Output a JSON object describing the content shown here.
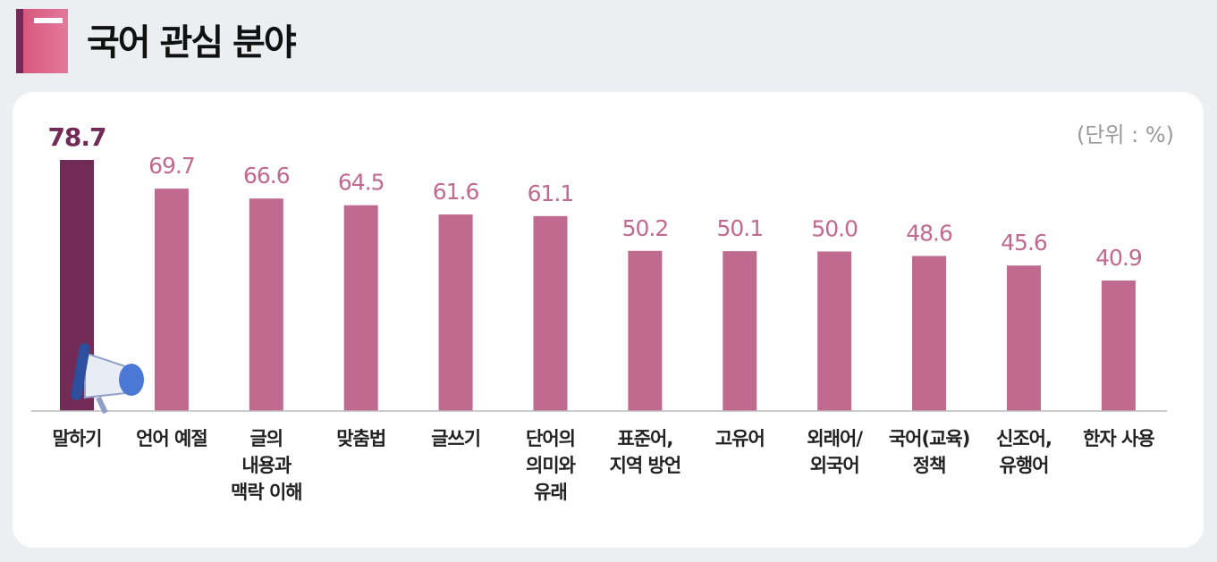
{
  "chart_data": {
    "type": "bar",
    "title": "국어 관심 분야",
    "unit_label": "(단위 : %)",
    "categories": [
      "말하기",
      "언어 예절",
      "글의\n내용과\n맥락 이해",
      "맞춤법",
      "글쓰기",
      "단어의\n의미와\n유래",
      "표준어,\n지역 방언",
      "고유어",
      "외래어/\n외국어",
      "국어(교육)\n정책",
      "신조어,\n유행어",
      "한자 사용"
    ],
    "values": [
      78.7,
      69.7,
      66.6,
      64.5,
      61.6,
      61.1,
      50.2,
      50.1,
      50.0,
      48.6,
      45.6,
      40.9
    ],
    "value_labels": [
      "78.7",
      "69.7",
      "66.6",
      "64.5",
      "61.6",
      "61.1",
      "50.2",
      "50.1",
      "50.0",
      "48.6",
      "45.6",
      "40.9"
    ],
    "colors": [
      "#722b57",
      "#c06a90",
      "#c06a90",
      "#c06a90",
      "#c06a90",
      "#c06a90",
      "#c06a90",
      "#c06a90",
      "#c06a90",
      "#c06a90",
      "#c06a90",
      "#c06a90"
    ]
  }
}
